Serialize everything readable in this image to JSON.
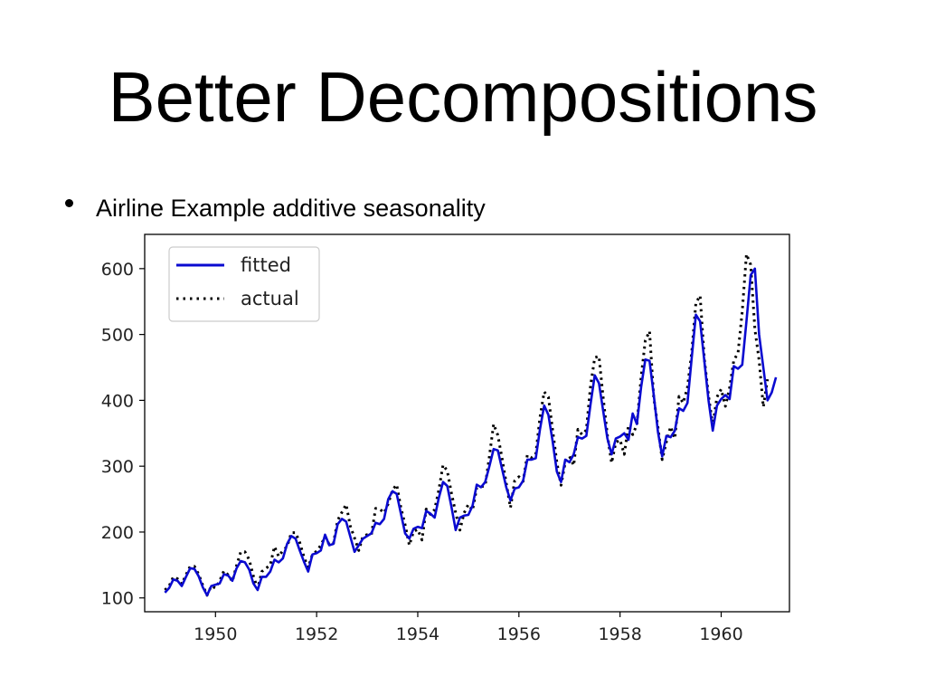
{
  "slide": {
    "title": "Better Decompositions",
    "bullet": "Airline Example additive seasonality"
  },
  "colors": {
    "fitted": "#0a0ad0",
    "actual": "#000000"
  },
  "chart_data": {
    "type": "line",
    "title": "",
    "xlabel": "",
    "ylabel": "",
    "xlim": [
      1948.6,
      1961.35
    ],
    "ylim": [
      79,
      652
    ],
    "x_ticks": [
      1950,
      1952,
      1954,
      1956,
      1958,
      1960
    ],
    "y_ticks": [
      100,
      200,
      300,
      400,
      500,
      600
    ],
    "x_tick_labels": [
      "1950",
      "1952",
      "1954",
      "1956",
      "1958",
      "1960"
    ],
    "y_tick_labels": [
      "100",
      "200",
      "300",
      "400",
      "500",
      "600"
    ],
    "grid": false,
    "legend_position": "top-left",
    "x_start": 1949.0,
    "x_step": 0.083333,
    "series": [
      {
        "name": "fitted",
        "style": "solid",
        "values": [
          108,
          115,
          128,
          126,
          118,
          132,
          145,
          144,
          133,
          116,
          104,
          118,
          120,
          122,
          136,
          134,
          126,
          145,
          156,
          154,
          143,
          122,
          112,
          132,
          132,
          140,
          158,
          154,
          160,
          182,
          194,
          190,
          172,
          155,
          140,
          166,
          168,
          172,
          196,
          180,
          182,
          212,
          220,
          216,
          193,
          170,
          180,
          190,
          194,
          198,
          214,
          212,
          220,
          250,
          262,
          258,
          228,
          198,
          190,
          205,
          208,
          206,
          232,
          228,
          222,
          252,
          276,
          270,
          238,
          203,
          222,
          225,
          226,
          240,
          272,
          268,
          276,
          300,
          326,
          324,
          296,
          268,
          248,
          266,
          268,
          278,
          310,
          310,
          312,
          356,
          392,
          378,
          338,
          292,
          276,
          310,
          306,
          318,
          344,
          342,
          346,
          394,
          438,
          426,
          384,
          342,
          318,
          342,
          345,
          350,
          340,
          380,
          364,
          420,
          462,
          460,
          408,
          352,
          315,
          346,
          344,
          354,
          388,
          384,
          396,
          464,
          530,
          520,
          460,
          400,
          354,
          392,
          402,
          408,
          402,
          452,
          448,
          454,
          520,
          590,
          600,
          500,
          450,
          400,
          412,
          435
        ]
      },
      {
        "name": "actual",
        "style": "dotted",
        "values": [
          112,
          118,
          132,
          129,
          121,
          135,
          148,
          148,
          136,
          119,
          104,
          118,
          115,
          126,
          141,
          135,
          125,
          149,
          170,
          170,
          158,
          133,
          114,
          140,
          145,
          150,
          178,
          163,
          172,
          178,
          199,
          199,
          184,
          162,
          146,
          166,
          171,
          180,
          193,
          181,
          183,
          218,
          230,
          242,
          209,
          191,
          172,
          194,
          196,
          196,
          236,
          235,
          229,
          243,
          264,
          272,
          237,
          211,
          180,
          201,
          204,
          188,
          235,
          227,
          234,
          264,
          302,
          293,
          259,
          229,
          203,
          229,
          242,
          233,
          267,
          269,
          270,
          315,
          364,
          347,
          312,
          274,
          237,
          278,
          284,
          277,
          317,
          313,
          318,
          374,
          413,
          405,
          355,
          306,
          271,
          306,
          315,
          301,
          356,
          348,
          355,
          422,
          465,
          467,
          404,
          347,
          305,
          336,
          340,
          318,
          362,
          348,
          363,
          435,
          491,
          505,
          404,
          359,
          310,
          337,
          360,
          342,
          406,
          396,
          420,
          472,
          548,
          559,
          463,
          407,
          362,
          405,
          417,
          391,
          419,
          461,
          472,
          535,
          622,
          606,
          508,
          461,
          390,
          432
        ]
      }
    ]
  }
}
